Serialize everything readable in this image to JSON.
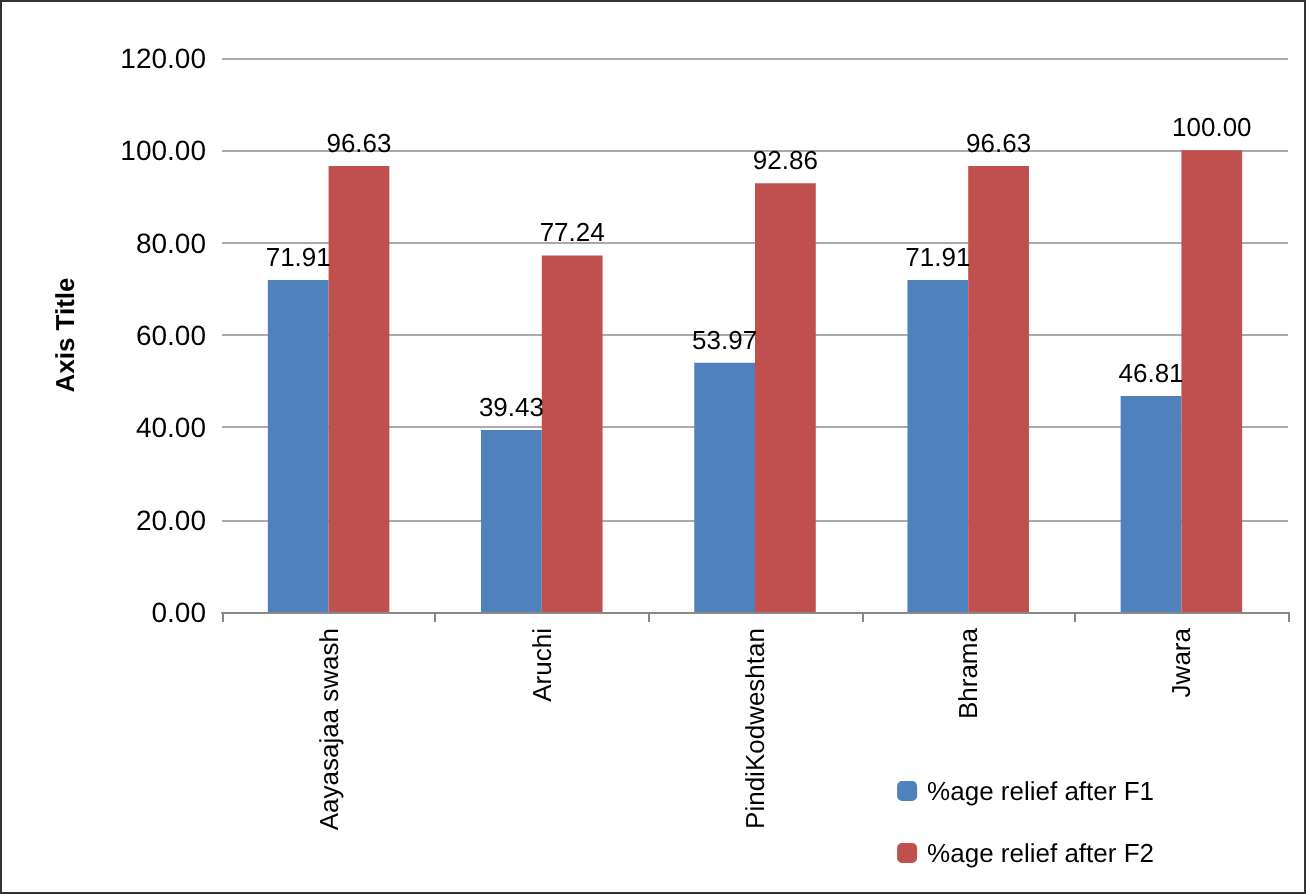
{
  "chart_data": {
    "type": "bar",
    "ylabel": "Axis Title",
    "categories": [
      "Aayasajaa swash",
      "Aruchi",
      "PindiKodweshtan",
      "Bhrama",
      "Jwara"
    ],
    "series": [
      {
        "name": "%age relief after F1",
        "color": "#4f81bd",
        "values": [
          71.91,
          39.43,
          53.97,
          71.91,
          46.81
        ],
        "value_labels": [
          "71.91",
          "39.43",
          "53.97",
          "71.91",
          "46.81"
        ]
      },
      {
        "name": "%age relief after F2",
        "color": "#c0504d",
        "values": [
          96.63,
          77.24,
          92.86,
          96.63,
          100.0
        ],
        "value_labels": [
          "96.63",
          "77.24",
          "92.86",
          "96.63",
          "100.00"
        ]
      }
    ],
    "ylim": [
      0,
      120
    ],
    "yticks": [
      {
        "value": 0,
        "label": "0.00"
      },
      {
        "value": 20,
        "label": "20.00"
      },
      {
        "value": 40,
        "label": "40.00"
      },
      {
        "value": 60,
        "label": "60.00"
      },
      {
        "value": 80,
        "label": "80.00"
      },
      {
        "value": 100,
        "label": "100.00"
      },
      {
        "value": 120,
        "label": "120.00"
      }
    ],
    "grid": "y",
    "legend": "bottom right"
  }
}
